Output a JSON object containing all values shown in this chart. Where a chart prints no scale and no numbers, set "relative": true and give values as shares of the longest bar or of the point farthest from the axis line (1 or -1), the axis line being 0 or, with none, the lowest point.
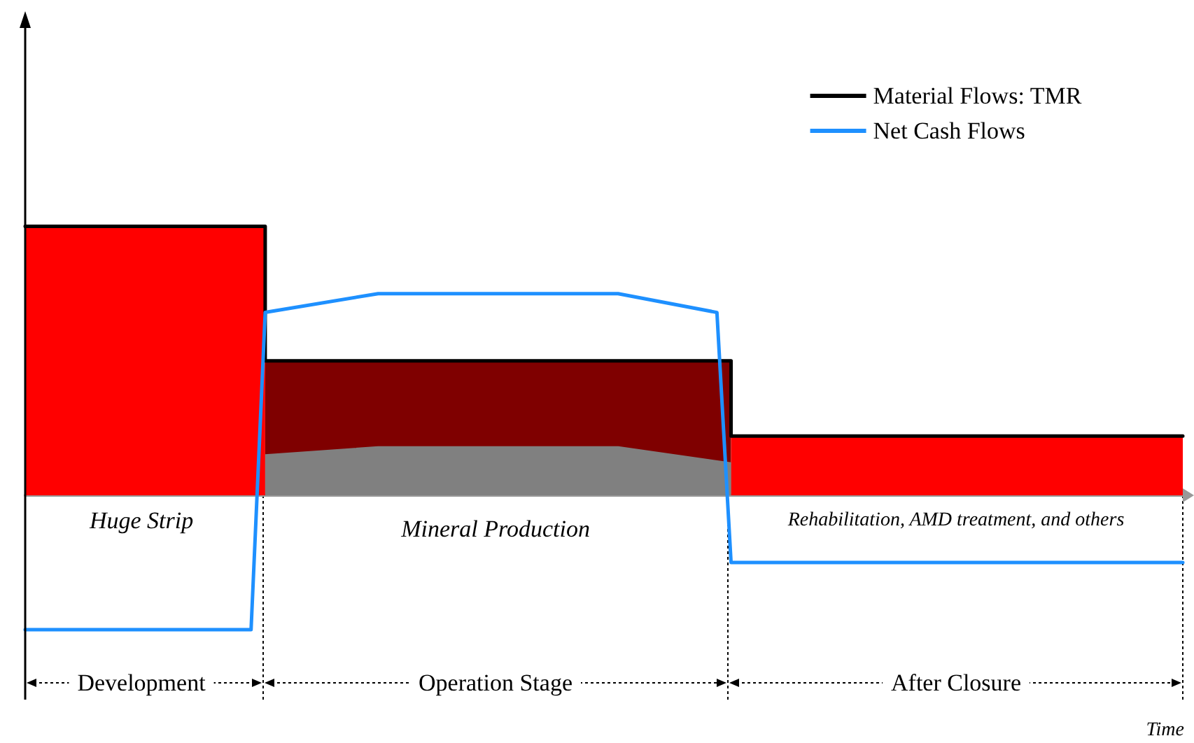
{
  "chart_data": {
    "type": "line",
    "relative": true,
    "xlabel": "Time",
    "legend": "top right",
    "categories": [
      null,
      null,
      null,
      null,
      null,
      null,
      null,
      null,
      null,
      null,
      null,
      null,
      null,
      null,
      null,
      null,
      null,
      null,
      null,
      null,
      null,
      null,
      null,
      null,
      null,
      null,
      null,
      null,
      null,
      null,
      null,
      null,
      null,
      null,
      null,
      null,
      null,
      null,
      null,
      null,
      null,
      null,
      null,
      null,
      null,
      null,
      null,
      null,
      null,
      null,
      null,
      null,
      null,
      null,
      null,
      null,
      null,
      null,
      null,
      null,
      null,
      null,
      null,
      null,
      null,
      null,
      null,
      null,
      null,
      null,
      null,
      null,
      null,
      null,
      null,
      null,
      null,
      null,
      null,
      null,
      null,
      null,
      null
    ],
    "series": [
      {
        "type": "area",
        "color": "#ff0000",
        "values": [
          1,
          null,
          null,
          null,
          null,
          null,
          null,
          null,
          null,
          null,
          null,
          null,
          null,
          null,
          null,
          null,
          null,
          1,
          null,
          null,
          null,
          null,
          null,
          null,
          null,
          null,
          null,
          null,
          null,
          null,
          null,
          null,
          null,
          null,
          null,
          null,
          null,
          null,
          null,
          null,
          null,
          null,
          null,
          null,
          null,
          null,
          null,
          null,
          null,
          null,
          null,
          null,
          null,
          null,
          null,
          null,
          null,
          null,
          null,
          null,
          null,
          null,
          null,
          null,
          null,
          null,
          null,
          null,
          null,
          null,
          null,
          null,
          null,
          null,
          null,
          null,
          null,
          null,
          null,
          null,
          null,
          null,
          null
        ]
      },
      {
        "type": "area",
        "color": "#7f0000",
        "values": [
          null,
          null,
          null,
          null,
          null,
          null,
          null,
          null,
          null,
          null,
          null,
          null,
          null,
          null,
          null,
          null,
          null,
          0.5,
          null,
          null,
          null,
          null,
          null,
          null,
          null,
          null,
          null,
          null,
          null,
          null,
          null,
          null,
          null,
          null,
          null,
          null,
          null,
          null,
          null,
          null,
          null,
          null,
          null,
          null,
          null,
          null,
          null,
          null,
          null,
          null,
          0.5,
          null,
          null,
          null,
          null,
          null,
          null,
          null,
          null,
          null,
          null,
          null,
          null,
          null,
          null,
          null,
          null,
          null,
          null,
          null,
          null,
          null,
          null,
          null,
          null,
          null,
          null,
          null,
          null,
          null,
          null,
          null,
          null
        ]
      },
      {
        "type": "area",
        "color": "#ff0000",
        "values": [
          null,
          null,
          null,
          null,
          null,
          null,
          null,
          null,
          null,
          null,
          null,
          null,
          null,
          null,
          null,
          null,
          null,
          null,
          null,
          null,
          null,
          null,
          null,
          null,
          null,
          null,
          null,
          null,
          null,
          null,
          null,
          null,
          null,
          null,
          null,
          null,
          null,
          null,
          null,
          null,
          null,
          null,
          null,
          null,
          null,
          null,
          null,
          null,
          null,
          null,
          0.22,
          null,
          null,
          null,
          null,
          null,
          null,
          null,
          null,
          null,
          null,
          null,
          null,
          null,
          null,
          null,
          null,
          null,
          null,
          null,
          null,
          null,
          null,
          null,
          null,
          null,
          null,
          null,
          null,
          null,
          null,
          null,
          0.22
        ]
      },
      {
        "type": "area",
        "color": "#808080",
        "values": [
          null,
          null,
          null,
          null,
          null,
          null,
          null,
          null,
          null,
          null,
          null,
          null,
          null,
          null,
          null,
          null,
          null,
          0.15,
          null,
          null,
          null,
          null,
          null,
          null,
          null,
          0.18,
          null,
          null,
          null,
          null,
          null,
          null,
          null,
          null,
          null,
          null,
          null,
          null,
          null,
          null,
          null,
          null,
          0.18,
          null,
          null,
          null,
          null,
          null,
          null,
          null,
          0.12,
          null,
          null,
          null,
          null,
          null,
          null,
          null,
          null,
          null,
          null,
          null,
          null,
          null,
          null,
          null,
          null,
          null,
          null,
          null,
          null,
          null,
          null,
          null,
          null,
          null,
          null,
          null,
          null,
          null,
          null,
          null,
          null
        ]
      },
      {
        "name": "Material Flows: TMR",
        "type": "step",
        "color": "#000000",
        "values": [
          1,
          1,
          1,
          1,
          1,
          1,
          1,
          1,
          1,
          1,
          1,
          1,
          1,
          1,
          1,
          1,
          1,
          0.5,
          0.5,
          0.5,
          0.5,
          0.5,
          0.5,
          0.5,
          0.5,
          0.5,
          0.5,
          0.5,
          0.5,
          0.5,
          0.5,
          0.5,
          0.5,
          0.5,
          0.5,
          0.5,
          0.5,
          0.5,
          0.5,
          0.5,
          0.5,
          0.5,
          0.5,
          0.5,
          0.5,
          0.5,
          0.5,
          0.5,
          0.5,
          0.5,
          0.22,
          0.22,
          0.22,
          0.22,
          0.22,
          0.22,
          0.22,
          0.22,
          0.22,
          0.22,
          0.22,
          0.22,
          0.22,
          0.22,
          0.22,
          0.22,
          0.22,
          0.22,
          0.22,
          0.22,
          0.22,
          0.22,
          0.22,
          0.22,
          0.22,
          0.22,
          0.22,
          0.22,
          0.22,
          0.22,
          0.22,
          0.22,
          0.22
        ]
      },
      {
        "name": "Net Cash Flows",
        "color": "#1e90ff",
        "values": [
          -0.5,
          null,
          null,
          null,
          null,
          null,
          null,
          null,
          null,
          null,
          null,
          null,
          null,
          null,
          null,
          null,
          -0.5,
          0.68,
          null,
          null,
          null,
          null,
          null,
          null,
          null,
          0.75,
          null,
          null,
          null,
          null,
          null,
          null,
          null,
          null,
          null,
          null,
          null,
          null,
          null,
          null,
          null,
          null,
          0.75,
          null,
          null,
          null,
          null,
          null,
          null,
          0.68,
          -0.25,
          null,
          null,
          null,
          null,
          null,
          null,
          null,
          null,
          null,
          null,
          null,
          null,
          null,
          null,
          null,
          null,
          null,
          null,
          null,
          null,
          null,
          null,
          null,
          null,
          null,
          null,
          null,
          null,
          null,
          null,
          null,
          -0.25
        ]
      }
    ],
    "annotations": [
      "Huge Strip",
      "Mineral Production",
      "Rehabilitation, AMD treatment, and others",
      "Development",
      "Operation Stage",
      "After Closure"
    ]
  }
}
